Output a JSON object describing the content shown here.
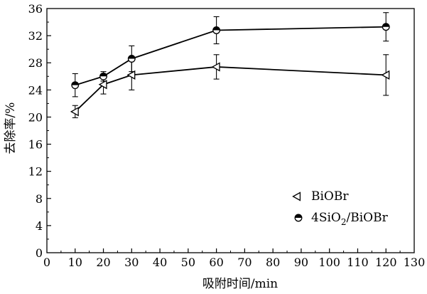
{
  "chart_data": {
    "type": "line",
    "title": "",
    "xlabel": "吸附时间/min",
    "ylabel": "去除率/%",
    "xlim": [
      0,
      130
    ],
    "ylim": [
      0,
      36
    ],
    "x_ticks": [
      "0",
      "10",
      "20",
      "30",
      "40",
      "50",
      "60",
      "70",
      "80",
      "90",
      "100",
      "110",
      "120",
      "130"
    ],
    "y_ticks": [
      "0",
      "4",
      "8",
      "12",
      "16",
      "20",
      "24",
      "28",
      "32",
      "36"
    ],
    "grid": false,
    "legend_position": "bottom-right",
    "series": [
      {
        "name": "BiOBr",
        "marker": "left-triangle",
        "x": [
          10,
          20,
          30,
          60,
          120
        ],
        "y": [
          20.8,
          24.8,
          26.2,
          27.4,
          26.2
        ],
        "error": [
          0.9,
          1.4,
          2.2,
          1.8,
          3.0
        ]
      },
      {
        "name": "4SiO2/BiOBr",
        "name_parts": [
          "4SiO",
          "2",
          "/BiOBr"
        ],
        "marker": "half-filled-circle",
        "x": [
          10,
          20,
          30,
          60,
          120
        ],
        "y": [
          24.7,
          26.0,
          28.6,
          32.8,
          33.3
        ],
        "error": [
          1.7,
          0.7,
          1.9,
          2.0,
          2.1
        ]
      }
    ],
    "colors": {
      "line": "#000000",
      "background": "#ffffff"
    }
  }
}
